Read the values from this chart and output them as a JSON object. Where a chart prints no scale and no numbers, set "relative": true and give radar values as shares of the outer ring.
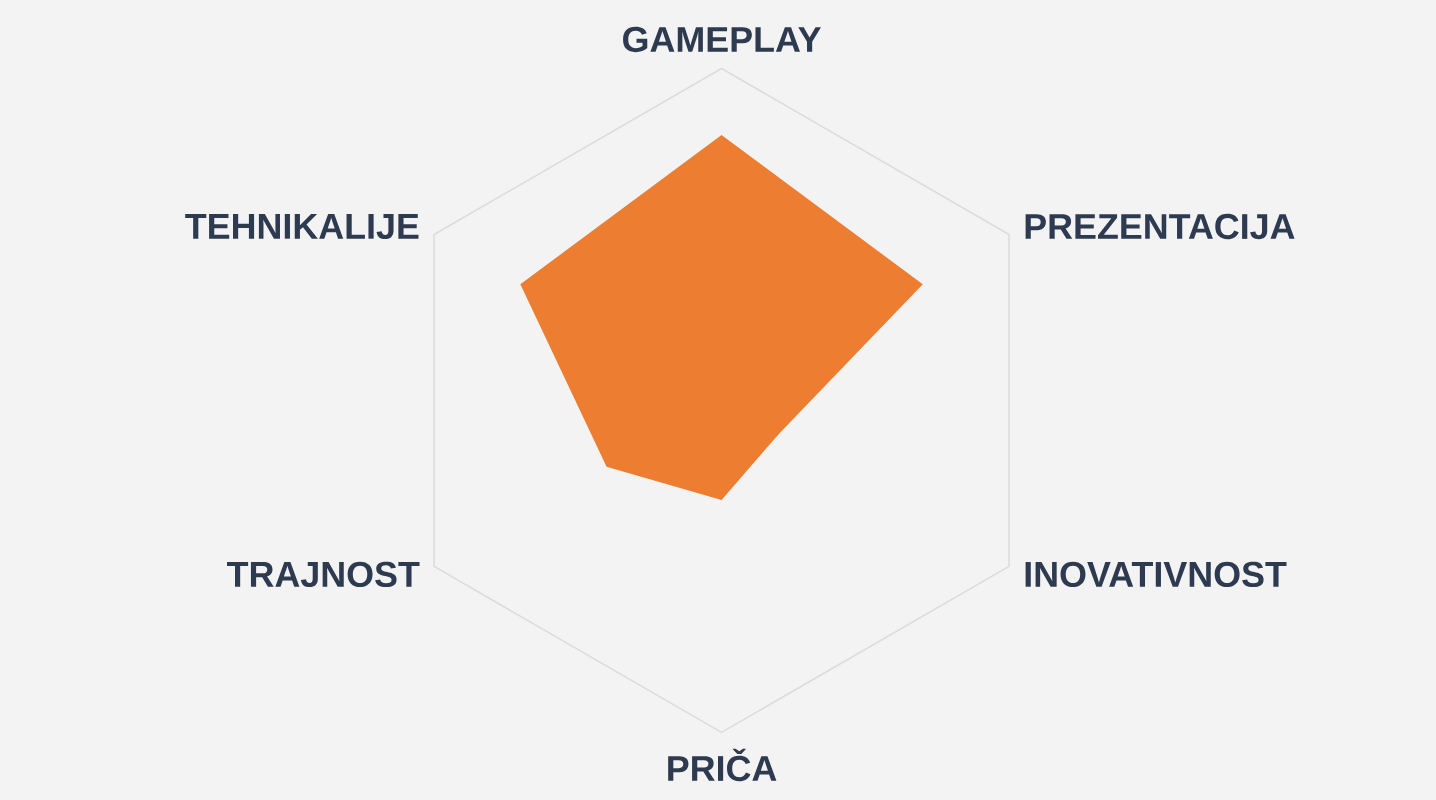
{
  "chart_data": {
    "type": "radar",
    "relative": true,
    "grid": true,
    "categories": [
      "GAMEPLAY",
      "PREZENTACIJA",
      "INOVATIVNOST",
      "PRIČA",
      "TRAJNOST",
      "TEHNIKALIJE"
    ],
    "series": [
      {
        "color": "#ed7d31",
        "values": [
          0.8,
          0.7,
          0.2,
          0.3,
          0.4,
          0.7
        ]
      }
    ]
  }
}
